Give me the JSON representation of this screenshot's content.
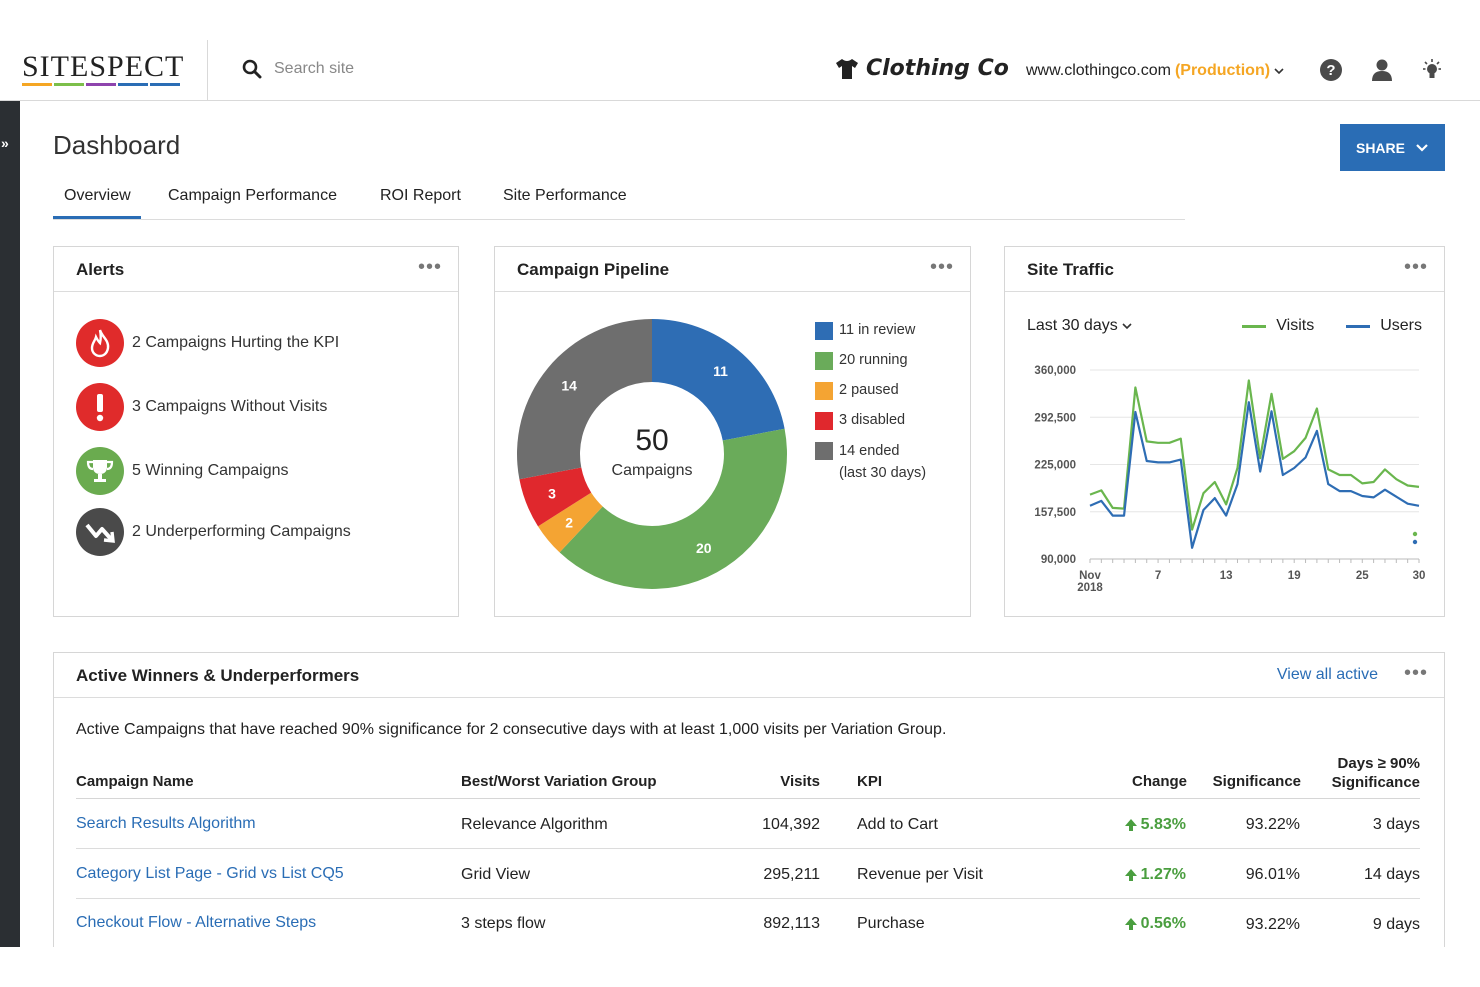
{
  "header": {
    "logo_text": "SITESPECT",
    "logo_colors": [
      "#f5a623",
      "#7cbf4a",
      "#8e44ad",
      "#2a6db5",
      "#2a6db5"
    ],
    "search_placeholder": "Search site",
    "brand_name": "Clothing Co",
    "site_url": "www.clothingco.com",
    "site_env": "(Production)",
    "icons": [
      "help-icon",
      "user-icon",
      "lightbulb-icon"
    ]
  },
  "page": {
    "title": "Dashboard",
    "share_label": "SHARE",
    "tabs": [
      {
        "label": "Overview",
        "active": true
      },
      {
        "label": "Campaign Performance",
        "active": false
      },
      {
        "label": "ROI Report",
        "active": false
      },
      {
        "label": "Site Performance",
        "active": false
      }
    ]
  },
  "alerts": {
    "title": "Alerts",
    "items": [
      {
        "label": "2 Campaigns Hurting the KPI",
        "icon": "flame-icon",
        "color": "#e02b2b"
      },
      {
        "label": "3 Campaigns Without Visits",
        "icon": "exclamation-icon",
        "color": "#e02b2b"
      },
      {
        "label": "5 Winning Campaigns",
        "icon": "trophy-icon",
        "color": "#6aab4f"
      },
      {
        "label": "2 Underperforming Campaigns",
        "icon": "trend-down-icon",
        "color": "#4a4a4a"
      }
    ]
  },
  "pipeline": {
    "title": "Campaign Pipeline",
    "total": "50",
    "total_label": "Campaigns",
    "legend": [
      {
        "label": "11 in review",
        "color": "#2e6db4"
      },
      {
        "label": "20 running",
        "color": "#6aab5a"
      },
      {
        "label": "2 paused",
        "color": "#f4a433"
      },
      {
        "label": "3 disabled",
        "color": "#e0282d"
      },
      {
        "label": "14 ended",
        "sub": "(last 30 days)",
        "color": "#6e6e6e"
      }
    ]
  },
  "traffic": {
    "title": "Site Traffic",
    "range": "Last 30 days",
    "legend_visits": "Visits",
    "legend_users": "Users"
  },
  "chart_data": [
    {
      "type": "pie",
      "categories": [
        "in review",
        "running",
        "paused",
        "disabled",
        "ended"
      ],
      "values": [
        11,
        20,
        2,
        3,
        14
      ],
      "colors": [
        "#2e6db4",
        "#6aab5a",
        "#f4a433",
        "#e0282d",
        "#6e6e6e"
      ],
      "data_labels": [
        "11",
        "20",
        "2",
        "3",
        "14"
      ]
    },
    {
      "type": "line",
      "x": [
        1,
        2,
        3,
        4,
        5,
        6,
        7,
        8,
        9,
        10,
        11,
        12,
        13,
        14,
        15,
        16,
        17,
        18,
        19,
        20,
        21,
        22,
        23,
        24,
        25,
        26,
        27,
        28,
        29,
        30
      ],
      "x_tick_labels": [
        {
          "x": 1,
          "label": "Nov",
          "label2": "2018"
        },
        {
          "x": 7,
          "label": "7"
        },
        {
          "x": 13,
          "label": "13"
        },
        {
          "x": 19,
          "label": "19"
        },
        {
          "x": 25,
          "label": "25"
        },
        {
          "x": 30,
          "label": "30"
        }
      ],
      "y_ticks": [
        "360,000",
        "292,500",
        "225,000",
        "157,500",
        "90,000"
      ],
      "ylim": [
        90000,
        360000
      ],
      "series": [
        {
          "name": "Visits",
          "color": "#6ab64e",
          "values": [
            182000,
            188000,
            163000,
            162000,
            335000,
            258000,
            256000,
            256000,
            262000,
            132000,
            184000,
            200000,
            168000,
            220000,
            345000,
            234000,
            326000,
            233000,
            244000,
            263000,
            305000,
            218000,
            210000,
            210000,
            198000,
            200000,
            218000,
            204000,
            195000,
            193000
          ]
        },
        {
          "name": "Users",
          "color": "#2e6db4",
          "values": [
            166000,
            173000,
            152000,
            152000,
            300000,
            230000,
            228000,
            228000,
            232000,
            106000,
            160000,
            177000,
            152000,
            197000,
            314000,
            215000,
            301000,
            210000,
            220000,
            235000,
            273000,
            197000,
            187000,
            187000,
            180000,
            178000,
            189000,
            179000,
            169000,
            166000
          ]
        }
      ]
    }
  ],
  "winners": {
    "title": "Active Winners & Underperformers",
    "view_all": "View all active",
    "description": "Active Campaigns that have reached 90% significance for 2 consecutive days with at least 1,000 visits per Variation Group.",
    "columns": {
      "name": "Campaign Name",
      "variation": "Best/Worst Variation Group",
      "visits": "Visits",
      "kpi": "KPI",
      "change": "Change",
      "significance": "Significance",
      "days_1": "Days ≥ 90%",
      "days_2": "Significance"
    },
    "rows": [
      {
        "name": "Search Results Algorithm",
        "variation": "Relevance Algorithm",
        "visits": "104,392",
        "kpi": "Add to Cart",
        "change": "5.83%",
        "significance": "93.22%",
        "days": "3 days"
      },
      {
        "name": "Category List Page - Grid vs List CQ5",
        "variation": "Grid View",
        "visits": "295,211",
        "kpi": "Revenue per Visit",
        "change": "1.27%",
        "significance": "96.01%",
        "days": "14 days"
      },
      {
        "name": "Checkout Flow - Alternative Steps",
        "variation": "3 steps flow",
        "visits": "892,113",
        "kpi": "Purchase",
        "change": "0.56%",
        "significance": "93.22%",
        "days": "9 days"
      }
    ]
  }
}
